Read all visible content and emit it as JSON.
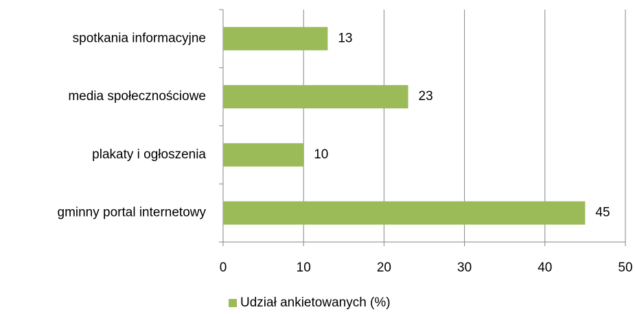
{
  "chart_data": {
    "type": "barh",
    "categories": [
      "spotkania informacyjne",
      "media społecznościowe",
      "plakaty i ogłoszenia",
      "gminny portal internetowy"
    ],
    "series": [
      {
        "name": "Udział ankietowanych (%)",
        "color": "#9bbb59",
        "values": [
          13,
          23,
          10,
          45
        ]
      }
    ],
    "xlim": [
      0,
      50
    ],
    "xticks": [
      0,
      10,
      20,
      30,
      40,
      50
    ],
    "grid": true,
    "legend": "bottom"
  }
}
